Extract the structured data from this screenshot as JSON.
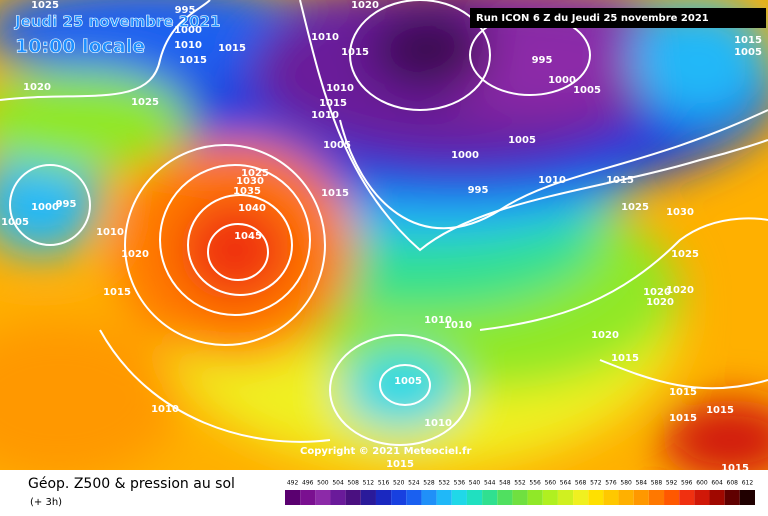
{
  "header": {
    "date": "Jeudi 25 novembre 2021",
    "time": "10:00 locale",
    "run": "Run ICON 6 Z du Jeudi 25 novembre 2021"
  },
  "copyright": "Copyright © 2021 Meteociel.fr",
  "footer": {
    "title": "Géop. Z500 & pression au sol",
    "subtitle": "(+ 3h)"
  },
  "isobars": [
    1025,
    995,
    1000,
    1010,
    1015,
    1015,
    1020,
    1025,
    1010,
    1015,
    1020,
    1010,
    1015,
    1010,
    1005,
    1015,
    995,
    1000,
    1005,
    1005,
    1000,
    995,
    1010,
    1015,
    1025,
    1030,
    1015,
    1005,
    1005,
    1000,
    995,
    1010,
    1020,
    1025,
    1030,
    1035,
    1040,
    1045,
    1015,
    1025,
    1020,
    1020,
    1020,
    1020,
    1010,
    1010,
    1015,
    1005,
    1010,
    1010,
    1015,
    1015,
    1015,
    1015,
    1015
  ],
  "legend": {
    "values": [
      492,
      496,
      500,
      504,
      508,
      512,
      516,
      520,
      524,
      528,
      532,
      536,
      540,
      544,
      548,
      552,
      556,
      560,
      564,
      568,
      572,
      576,
      580,
      584,
      588,
      592,
      596,
      600,
      604,
      608,
      612
    ],
    "colors": [
      "#5a0070",
      "#7a1090",
      "#8c2aa8",
      "#6a1a9a",
      "#4a1080",
      "#2a1a9a",
      "#1a28c0",
      "#1840e0",
      "#1a60f0",
      "#2090f8",
      "#20b8f8",
      "#20d8e8",
      "#20e0c0",
      "#30e090",
      "#50e060",
      "#70e040",
      "#90e828",
      "#b0f020",
      "#d0f020",
      "#f0f020",
      "#ffe000",
      "#ffc800",
      "#ffb000",
      "#ff9800",
      "#ff7800",
      "#ff5800",
      "#f03010",
      "#d01808",
      "#a00800",
      "#600000",
      "#200000"
    ]
  }
}
